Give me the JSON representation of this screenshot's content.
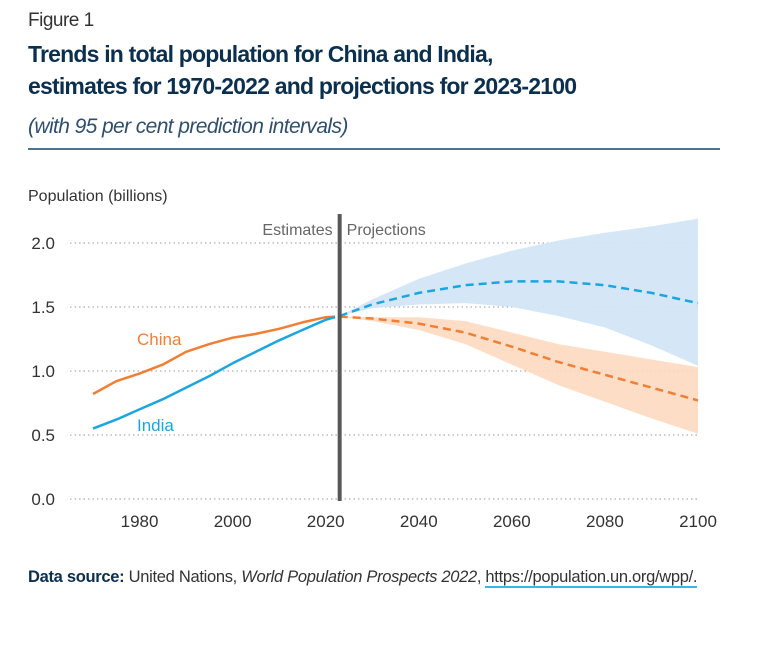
{
  "header": {
    "figure_label": "Figure 1",
    "title_line1": "Trends in total population for China and India,",
    "title_line2": "estimates for 1970-2022 and projections for 2023-2100",
    "subtitle": "(with 95 per cent prediction intervals)"
  },
  "chart_data": {
    "type": "line",
    "ylabel": "Population (billions)",
    "xlim": [
      1970,
      2100
    ],
    "ylim": [
      0,
      2.0
    ],
    "x_ticks": [
      "1980",
      "2000",
      "2020",
      "2040",
      "2060",
      "2080",
      "2100"
    ],
    "y_ticks": [
      "0.0",
      "0.5",
      "1.0",
      "1.5",
      "2.0"
    ],
    "grid": "horizontal dotted",
    "divider_year": 2023,
    "divider_labels": {
      "left": "Estimates",
      "right": "Projections"
    },
    "colors": {
      "China": "#f07f36",
      "India": "#1ba6e0",
      "China_band": "#fdd9bf",
      "India_band": "#d3e6f7",
      "divider": "#58595b"
    },
    "series": [
      {
        "name": "China",
        "estimates": {
          "x": [
            1970,
            1975,
            1980,
            1985,
            1990,
            1995,
            2000,
            2005,
            2010,
            2015,
            2020,
            2022
          ],
          "y": [
            0.82,
            0.92,
            0.98,
            1.05,
            1.15,
            1.21,
            1.26,
            1.29,
            1.33,
            1.38,
            1.42,
            1.425
          ]
        },
        "projection": {
          "x": [
            2023,
            2030,
            2040,
            2050,
            2060,
            2070,
            2080,
            2090,
            2100
          ],
          "median": [
            1.425,
            1.41,
            1.37,
            1.3,
            1.19,
            1.07,
            0.97,
            0.87,
            0.77
          ],
          "lower": [
            1.425,
            1.39,
            1.32,
            1.21,
            1.05,
            0.89,
            0.76,
            0.63,
            0.51
          ],
          "upper": [
            1.425,
            1.42,
            1.42,
            1.39,
            1.3,
            1.21,
            1.15,
            1.09,
            1.03
          ]
        }
      },
      {
        "name": "India",
        "estimates": {
          "x": [
            1970,
            1975,
            1980,
            1985,
            1990,
            1995,
            2000,
            2005,
            2010,
            2015,
            2020,
            2022
          ],
          "y": [
            0.55,
            0.62,
            0.7,
            0.78,
            0.87,
            0.96,
            1.06,
            1.15,
            1.24,
            1.32,
            1.4,
            1.42
          ]
        },
        "projection": {
          "x": [
            2023,
            2030,
            2040,
            2050,
            2060,
            2070,
            2080,
            2090,
            2100
          ],
          "median": [
            1.43,
            1.52,
            1.61,
            1.67,
            1.7,
            1.7,
            1.67,
            1.61,
            1.53
          ],
          "lower": [
            1.43,
            1.49,
            1.52,
            1.53,
            1.5,
            1.43,
            1.34,
            1.2,
            1.04
          ],
          "upper": [
            1.43,
            1.56,
            1.72,
            1.84,
            1.94,
            2.02,
            2.08,
            2.13,
            2.19
          ]
        }
      }
    ]
  },
  "footer": {
    "source_label": "Data source:",
    "source_org": " United Nations, ",
    "source_title": "World Population Prospects 2022",
    "source_sep": ", ",
    "source_link": "https://population.un.org/wpp/."
  }
}
